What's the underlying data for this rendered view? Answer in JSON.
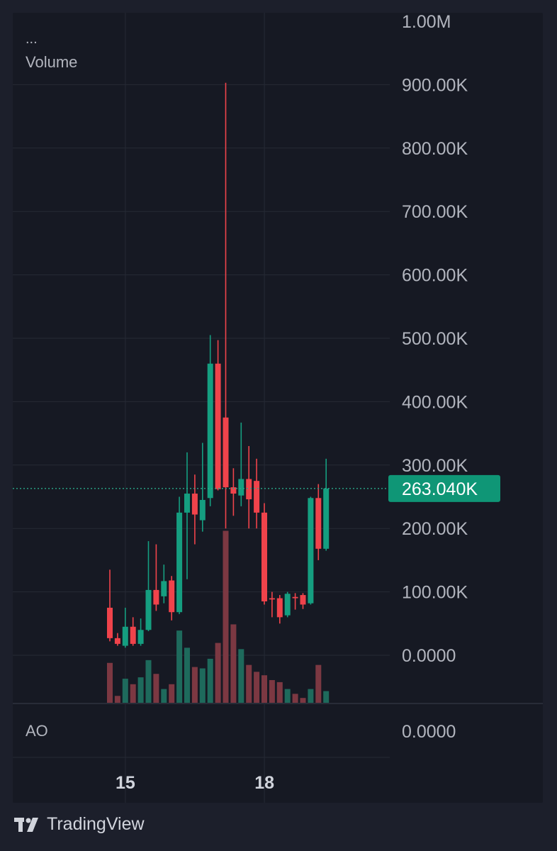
{
  "legend": {
    "dots": "...",
    "volume_label": "Volume"
  },
  "indicator": {
    "label": "AO",
    "axis_value": "0.0000"
  },
  "brand": {
    "name": "TradingView"
  },
  "colors": {
    "up": "#159e80",
    "down": "#f0434b",
    "vol_up": "#1e6a5c",
    "vol_down": "#7c3842",
    "grid": "#262a35",
    "axis_text": "#b2b5be",
    "price_tag": "#0f9676"
  },
  "chart_data": {
    "type": "candlestick",
    "y_ticks": [
      "1.00M",
      "900.00K",
      "800.00K",
      "700.00K",
      "600.00K",
      "500.00K",
      "400.00K",
      "300.00K",
      "200.00K",
      "100.00K",
      "0.0000"
    ],
    "ylim": [
      0,
      1000000
    ],
    "x_labels": [
      {
        "index": 1,
        "label": "15"
      },
      {
        "index": 19,
        "label": "18"
      }
    ],
    "last_price": {
      "value": 263040,
      "label": "263.040K"
    },
    "grid": true,
    "candles": [
      {
        "o": 75000,
        "h": 135000,
        "l": 22000,
        "c": 27000,
        "v": 0.58
      },
      {
        "o": 27000,
        "h": 35000,
        "l": 15000,
        "c": 18000,
        "v": 0.1
      },
      {
        "o": 15000,
        "h": 75000,
        "l": 12000,
        "c": 45000,
        "v": 0.35
      },
      {
        "o": 45000,
        "h": 60000,
        "l": 15000,
        "c": 18000,
        "v": 0.27
      },
      {
        "o": 18000,
        "h": 58000,
        "l": 15000,
        "c": 40000,
        "v": 0.37
      },
      {
        "o": 40000,
        "h": 180000,
        "l": 38000,
        "c": 103000,
        "v": 0.62
      },
      {
        "o": 103000,
        "h": 175000,
        "l": 70000,
        "c": 80000,
        "v": 0.42
      },
      {
        "o": 93000,
        "h": 143000,
        "l": 82000,
        "c": 117000,
        "v": 0.2
      },
      {
        "o": 118000,
        "h": 125000,
        "l": 55000,
        "c": 68000,
        "v": 0.27
      },
      {
        "o": 68000,
        "h": 250000,
        "l": 65000,
        "c": 225000,
        "v": 1.05
      },
      {
        "o": 225000,
        "h": 320000,
        "l": 120000,
        "c": 255000,
        "v": 0.8
      },
      {
        "o": 255000,
        "h": 285000,
        "l": 175000,
        "c": 222000,
        "v": 0.52
      },
      {
        "o": 213000,
        "h": 335000,
        "l": 195000,
        "c": 245000,
        "v": 0.5
      },
      {
        "o": 248000,
        "h": 505000,
        "l": 235000,
        "c": 460000,
        "v": 0.64
      },
      {
        "o": 460000,
        "h": 497000,
        "l": 260000,
        "c": 262000,
        "v": 0.87
      },
      {
        "o": 375000,
        "h": 903000,
        "l": 200000,
        "c": 265000,
        "v": 2.5
      },
      {
        "o": 265000,
        "h": 295000,
        "l": 220000,
        "c": 255000,
        "v": 1.14
      },
      {
        "o": 252000,
        "h": 367000,
        "l": 235000,
        "c": 278000,
        "v": 0.78
      },
      {
        "o": 278000,
        "h": 330000,
        "l": 200000,
        "c": 246000,
        "v": 0.55
      },
      {
        "o": 275000,
        "h": 310000,
        "l": 200000,
        "c": 225000,
        "v": 0.45
      },
      {
        "o": 225000,
        "h": 240000,
        "l": 80000,
        "c": 85000,
        "v": 0.4
      },
      {
        "o": 90000,
        "h": 100000,
        "l": 60000,
        "c": 88000,
        "v": 0.33
      },
      {
        "o": 90000,
        "h": 95000,
        "l": 50000,
        "c": 60000,
        "v": 0.3
      },
      {
        "o": 63000,
        "h": 100000,
        "l": 60000,
        "c": 97000,
        "v": 0.2
      },
      {
        "o": 92000,
        "h": 98000,
        "l": 72000,
        "c": 90000,
        "v": 0.13
      },
      {
        "o": 95000,
        "h": 98000,
        "l": 73000,
        "c": 80000,
        "v": 0.07
      },
      {
        "o": 82000,
        "h": 250000,
        "l": 80000,
        "c": 248000,
        "v": 0.2
      },
      {
        "o": 248000,
        "h": 270000,
        "l": 150000,
        "c": 168000,
        "v": 0.55
      },
      {
        "o": 168000,
        "h": 310000,
        "l": 165000,
        "c": 263040,
        "v": 0.17
      }
    ]
  }
}
